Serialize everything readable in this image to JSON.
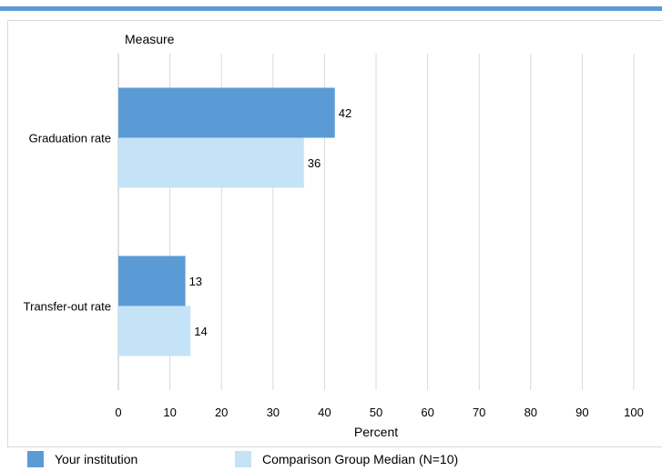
{
  "chart_data": {
    "type": "bar",
    "orientation": "horizontal",
    "y_axis_title": "Measure",
    "xlabel": "Percent",
    "xlim": [
      0,
      100
    ],
    "x_ticks": [
      0,
      10,
      20,
      30,
      40,
      50,
      60,
      70,
      80,
      90,
      100
    ],
    "categories": [
      "Graduation rate",
      "Transfer-out rate"
    ],
    "series": [
      {
        "name": "Your institution",
        "values": [
          42,
          13
        ],
        "color": "#5b9bd5"
      },
      {
        "name": "Comparison Group Median (N=10)",
        "values": [
          36,
          14
        ],
        "color": "#c5e3f7"
      }
    ],
    "data_labels": true,
    "grid": "vertical",
    "legend_position": "bottom-left"
  }
}
